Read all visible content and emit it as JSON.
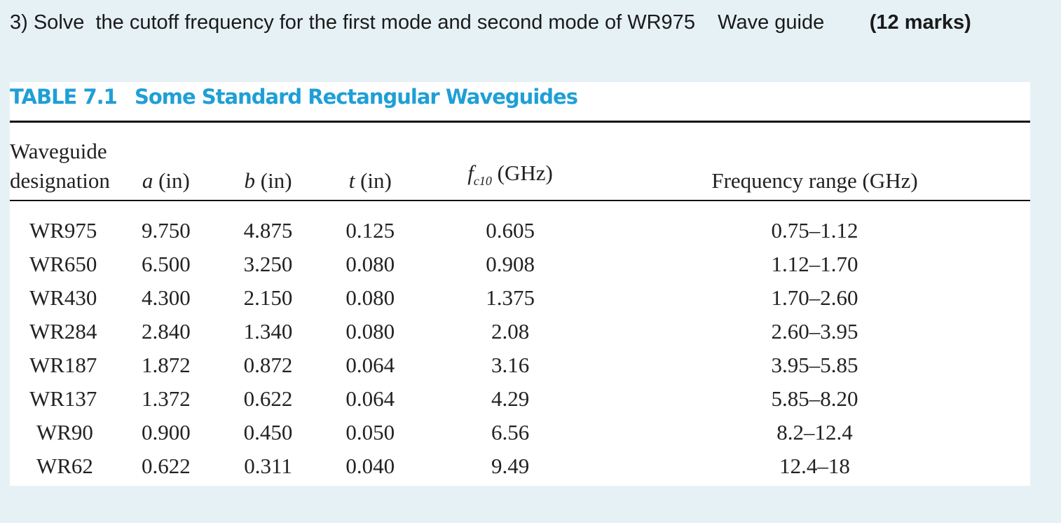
{
  "question": {
    "text": "3) Solve  the cutoff frequency for the first mode and second mode of WR975    Wave guide",
    "marks": "(12 marks)"
  },
  "table": {
    "label": "TABLE 7.1",
    "title": "Some Standard Rectangular Waveguides",
    "headers": [
      {
        "line1": "Waveguide",
        "line2": "designation"
      },
      {
        "symbol": "a",
        "unit": "(in)"
      },
      {
        "symbol": "b",
        "unit": "(in)"
      },
      {
        "symbol": "t",
        "unit": "(in)"
      },
      {
        "symbol": "f",
        "subscript": "c10",
        "unit": "(GHz)"
      },
      {
        "text": "Frequency range (GHz)"
      }
    ],
    "rows": [
      [
        "WR975",
        "9.750",
        "4.875",
        "0.125",
        "0.605",
        "0.75–1.12"
      ],
      [
        "WR650",
        "6.500",
        "3.250",
        "0.080",
        "0.908",
        "1.12–1.70"
      ],
      [
        "WR430",
        "4.300",
        "2.150",
        "0.080",
        "1.375",
        "1.70–2.60"
      ],
      [
        "WR284",
        "2.840",
        "1.340",
        "0.080",
        "2.08",
        "2.60–3.95"
      ],
      [
        "WR187",
        "1.872",
        "0.872",
        "0.064",
        "3.16",
        "3.95–5.85"
      ],
      [
        "WR137",
        "1.372",
        "0.622",
        "0.064",
        "4.29",
        "5.85–8.20"
      ],
      [
        "WR90",
        "0.900",
        "0.450",
        "0.050",
        "6.56",
        "8.2–12.4"
      ],
      [
        "WR62",
        "0.622",
        "0.311",
        "0.040",
        "9.49",
        "12.4–18"
      ]
    ]
  }
}
